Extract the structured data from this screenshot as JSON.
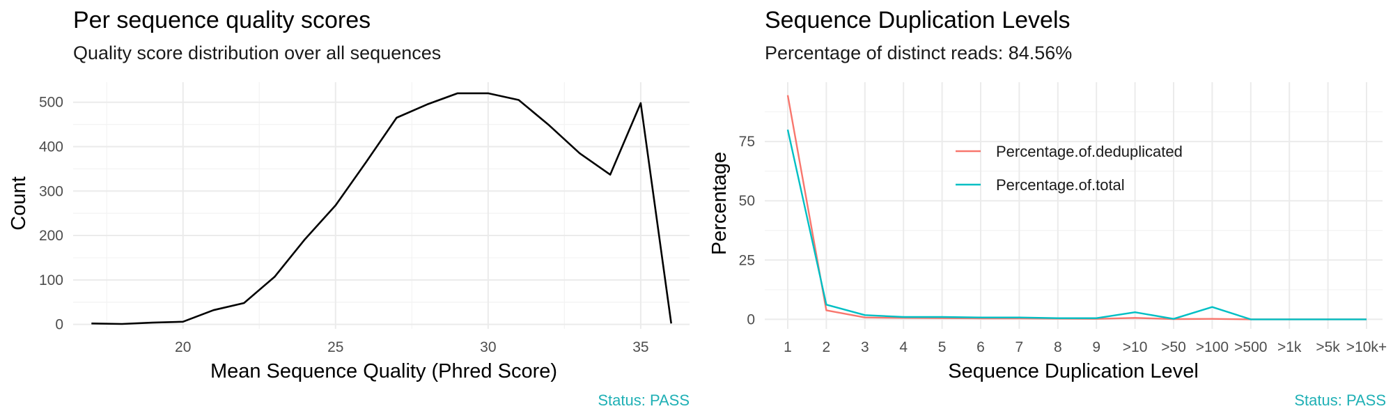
{
  "chart_data": [
    {
      "type": "line",
      "title": "Per sequence quality scores",
      "subtitle": "Quality score distribution over all sequences",
      "xlabel": "Mean Sequence Quality (Phred Score)",
      "ylabel": "Count",
      "xlim": [
        16.4,
        36.6
      ],
      "ylim": [
        -10,
        545
      ],
      "x_ticks": [
        20,
        25,
        30,
        35
      ],
      "y_ticks": [
        0,
        100,
        200,
        300,
        400,
        500
      ],
      "grid": true,
      "status": "Status: PASS",
      "series": [
        {
          "color": "#000000",
          "x": [
            17,
            18,
            19,
            20,
            21,
            22,
            23,
            24,
            25,
            26,
            27,
            28,
            29,
            30,
            31,
            32,
            33,
            34,
            35,
            36
          ],
          "values": [
            2,
            1,
            4,
            6,
            32,
            48,
            107,
            192,
            268,
            365,
            465,
            495,
            520,
            520,
            505,
            448,
            385,
            337,
            498,
            2
          ]
        }
      ]
    },
    {
      "type": "line",
      "title": "Sequence Duplication Levels",
      "subtitle": "Percentage of distinct reads: 84.56%",
      "xlabel": "Sequence Duplication Level",
      "ylabel": "Percentage",
      "categories": [
        "1",
        "2",
        "3",
        "4",
        "5",
        "6",
        "7",
        "8",
        "9",
        ">10",
        ">50",
        ">100",
        ">500",
        ">1k",
        ">5k",
        ">10k+"
      ],
      "ylim": [
        -4,
        100
      ],
      "y_ticks": [
        0,
        25,
        50,
        75
      ],
      "grid": true,
      "legend_position": "inside-top-center",
      "status": "Status: PASS",
      "series": [
        {
          "name": "Percentage.of.deduplicated",
          "color": "#f8766d",
          "values": [
            94.5,
            3.8,
            0.8,
            0.6,
            0.5,
            0.4,
            0.4,
            0.3,
            0.2,
            0.6,
            0.1,
            0.2,
            0.0,
            0.0,
            0.0,
            0.0
          ]
        },
        {
          "name": "Percentage.of.total",
          "color": "#00bfc4",
          "values": [
            80.0,
            6.2,
            1.8,
            1.0,
            1.0,
            0.8,
            0.8,
            0.5,
            0.5,
            3.0,
            0.2,
            5.2,
            0.0,
            0.0,
            0.0,
            0.0
          ]
        }
      ]
    }
  ]
}
